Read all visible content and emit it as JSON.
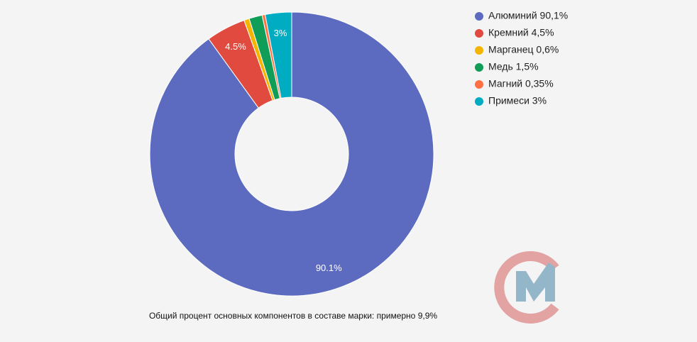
{
  "chart_data": {
    "type": "donut",
    "categories": [
      "Алюминий 90,1%",
      "Кремний 4,5%",
      "Марганец 0,6%",
      "Медь 1,5%",
      "Магний 0,35%",
      "Примеси 3%"
    ],
    "values": [
      90.1,
      4.5,
      0.6,
      1.5,
      0.35,
      3
    ],
    "value_labels": [
      "90.1%",
      "4.5%",
      null,
      null,
      null,
      "3%"
    ],
    "colors": [
      "#5c6bc0",
      "#e04a3f",
      "#f4b400",
      "#0f9d58",
      "#ff7043",
      "#00acc1"
    ],
    "legend": "right",
    "caption": "Общий процент основных компонентов в составе марки: примерно 9,9%"
  }
}
